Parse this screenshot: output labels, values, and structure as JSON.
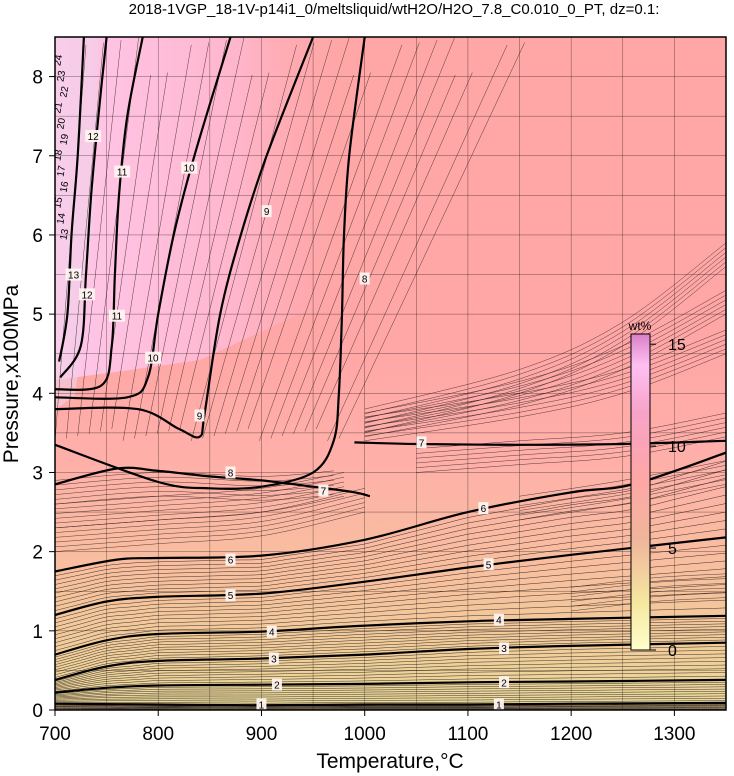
{
  "chart_data": {
    "type": "contour",
    "title": "2018-1VGP_18-1V-p14i1_0/meltsliquid/wtH2O/H2O_7.8_C0.010_0_PT, dz=0.1:",
    "xlabel": "Temperature,°C",
    "ylabel": "Pressure,x100MPa",
    "xlim": [
      700,
      1350
    ],
    "ylim": [
      0,
      8.5
    ],
    "x_ticks": [
      700,
      800,
      900,
      1000,
      1100,
      1200,
      1300
    ],
    "y_ticks": [
      0,
      1,
      2,
      3,
      4,
      5,
      6,
      7,
      8
    ],
    "x_tick_labels": [
      "700",
      "800",
      "900",
      "1000",
      "1100",
      "1200",
      "1300"
    ],
    "y_tick_labels": [
      "0",
      "1",
      "2",
      "3",
      "4",
      "5",
      "6",
      "7",
      "8"
    ],
    "grid": true,
    "contour_interval": 0.1,
    "major_contours": [
      {
        "level": "1",
        "label_points": [
          [
            900,
            0.07
          ],
          [
            1130,
            0.07
          ]
        ],
        "path": [
          [
            700,
            0.08
          ],
          [
            800,
            0.07
          ],
          [
            900,
            0.06
          ],
          [
            1000,
            0.07
          ],
          [
            1100,
            0.07
          ],
          [
            1200,
            0.08
          ],
          [
            1350,
            0.09
          ]
        ]
      },
      {
        "level": "2",
        "label_points": [
          [
            915,
            0.32
          ],
          [
            1135,
            0.35
          ]
        ],
        "path": [
          [
            700,
            0.22
          ],
          [
            750,
            0.28
          ],
          [
            800,
            0.31
          ],
          [
            900,
            0.32
          ],
          [
            1000,
            0.33
          ],
          [
            1100,
            0.35
          ],
          [
            1200,
            0.36
          ],
          [
            1350,
            0.38
          ]
        ]
      },
      {
        "level": "3",
        "label_points": [
          [
            912,
            0.65
          ],
          [
            1135,
            0.78
          ]
        ],
        "path": [
          [
            700,
            0.38
          ],
          [
            750,
            0.55
          ],
          [
            800,
            0.62
          ],
          [
            900,
            0.65
          ],
          [
            1000,
            0.7
          ],
          [
            1100,
            0.77
          ],
          [
            1200,
            0.81
          ],
          [
            1350,
            0.85
          ]
        ]
      },
      {
        "level": "4",
        "label_points": [
          [
            910,
            0.99
          ],
          [
            1130,
            1.14
          ]
        ],
        "path": [
          [
            700,
            0.7
          ],
          [
            750,
            0.88
          ],
          [
            800,
            0.96
          ],
          [
            900,
            0.99
          ],
          [
            990,
            1.06
          ],
          [
            1100,
            1.12
          ],
          [
            1200,
            1.15
          ],
          [
            1350,
            1.19
          ]
        ]
      },
      {
        "level": "5",
        "label_points": [
          [
            870,
            1.45
          ],
          [
            1120,
            1.84
          ]
        ],
        "path": [
          [
            700,
            1.2
          ],
          [
            750,
            1.37
          ],
          [
            800,
            1.43
          ],
          [
            900,
            1.47
          ],
          [
            1000,
            1.62
          ],
          [
            1100,
            1.8
          ],
          [
            1200,
            1.96
          ],
          [
            1350,
            2.18
          ]
        ]
      },
      {
        "level": "6",
        "label_points": [
          [
            870,
            1.9
          ],
          [
            1115,
            2.55
          ]
        ],
        "path": [
          [
            700,
            1.75
          ],
          [
            760,
            1.9
          ],
          [
            800,
            1.92
          ],
          [
            900,
            1.95
          ],
          [
            1000,
            2.15
          ],
          [
            1100,
            2.5
          ],
          [
            1200,
            2.75
          ],
          [
            1260,
            2.85
          ],
          [
            1350,
            3.25
          ]
        ]
      },
      {
        "level": "7",
        "label_points": [
          [
            960,
            2.77
          ],
          [
            1055,
            3.38
          ]
        ],
        "path": [
          [
            990,
            3.38
          ],
          [
            1050,
            3.36
          ],
          [
            1150,
            3.35
          ],
          [
            1250,
            3.36
          ],
          [
            1350,
            3.4
          ]
        ]
      },
      {
        "level": "7",
        "label_points": [],
        "path": [
          [
            700,
            2.85
          ],
          [
            760,
            3.05
          ],
          [
            800,
            3.02
          ],
          [
            850,
            2.95
          ],
          [
            900,
            2.9
          ],
          [
            950,
            2.82
          ],
          [
            990,
            2.75
          ],
          [
            1005,
            2.7
          ]
        ]
      },
      {
        "level": "8",
        "label_points": [
          [
            870,
            3.0
          ],
          [
            1000,
            5.45
          ]
        ],
        "path": [
          [
            700,
            3.35
          ],
          [
            800,
            2.88
          ],
          [
            850,
            2.8
          ],
          [
            900,
            2.82
          ],
          [
            950,
            3.0
          ],
          [
            970,
            3.4
          ],
          [
            975,
            4.0
          ],
          [
            978,
            5.0
          ],
          [
            980,
            6.0
          ],
          [
            985,
            7.0
          ],
          [
            1000,
            8.5
          ]
        ]
      },
      {
        "level": "9",
        "label_points": [
          [
            840,
            3.72
          ],
          [
            905,
            6.3
          ]
        ],
        "path": [
          [
            700,
            3.8
          ],
          [
            780,
            3.8
          ],
          [
            820,
            3.55
          ],
          [
            840,
            3.45
          ],
          [
            845,
            3.75
          ],
          [
            860,
            5.0
          ],
          [
            880,
            6.0
          ],
          [
            905,
            7.0
          ],
          [
            950,
            8.5
          ]
        ]
      },
      {
        "level": "10",
        "label_points": [
          [
            795,
            4.45
          ],
          [
            830,
            6.85
          ]
        ],
        "path": [
          [
            700,
            3.95
          ],
          [
            770,
            3.95
          ],
          [
            790,
            4.2
          ],
          [
            800,
            5.0
          ],
          [
            815,
            6.0
          ],
          [
            835,
            7.0
          ],
          [
            870,
            8.5
          ]
        ]
      },
      {
        "level": "11",
        "label_points": [
          [
            760,
            4.98
          ],
          [
            765,
            6.8
          ]
        ],
        "path": [
          [
            700,
            4.05
          ],
          [
            745,
            4.1
          ],
          [
            755,
            4.6
          ],
          [
            758,
            5.5
          ],
          [
            762,
            6.5
          ],
          [
            770,
            7.5
          ],
          [
            785,
            8.5
          ]
        ]
      },
      {
        "level": "12",
        "label_points": [
          [
            731,
            5.25
          ],
          [
            737,
            7.25
          ]
        ],
        "path": [
          [
            705,
            4.2
          ],
          [
            725,
            4.6
          ],
          [
            730,
            5.5
          ],
          [
            735,
            6.5
          ],
          [
            742,
            7.5
          ],
          [
            750,
            8.5
          ]
        ]
      },
      {
        "level": "13",
        "label_points": [
          [
            718,
            5.5
          ]
        ],
        "path": [
          [
            704,
            4.4
          ],
          [
            712,
            5.0
          ],
          [
            716,
            6.0
          ],
          [
            722,
            7.0
          ],
          [
            728,
            8.5
          ]
        ]
      }
    ],
    "steep_cluster_labels": [
      "24",
      "23",
      "22",
      "21",
      "20",
      "19",
      "18",
      "17",
      "16",
      "15",
      "14",
      "13"
    ],
    "colorbar": {
      "unit": "wt%",
      "range": [
        0,
        15.5
      ],
      "ticks": [
        0,
        5,
        10,
        15
      ],
      "tick_labels": [
        "0",
        "5",
        "10",
        "15"
      ],
      "colors": [
        "#ffffcc",
        "#f5e7a0",
        "#f0b59c",
        "#ffa6a6",
        "#f7a3c8",
        "#ffbff2",
        "#d880c8"
      ]
    },
    "fill_colors": {
      "low": "#e8dc9c",
      "mid": "#f4bba8",
      "high": "#ffa6a6",
      "top_left": "#ffc8e8"
    }
  }
}
